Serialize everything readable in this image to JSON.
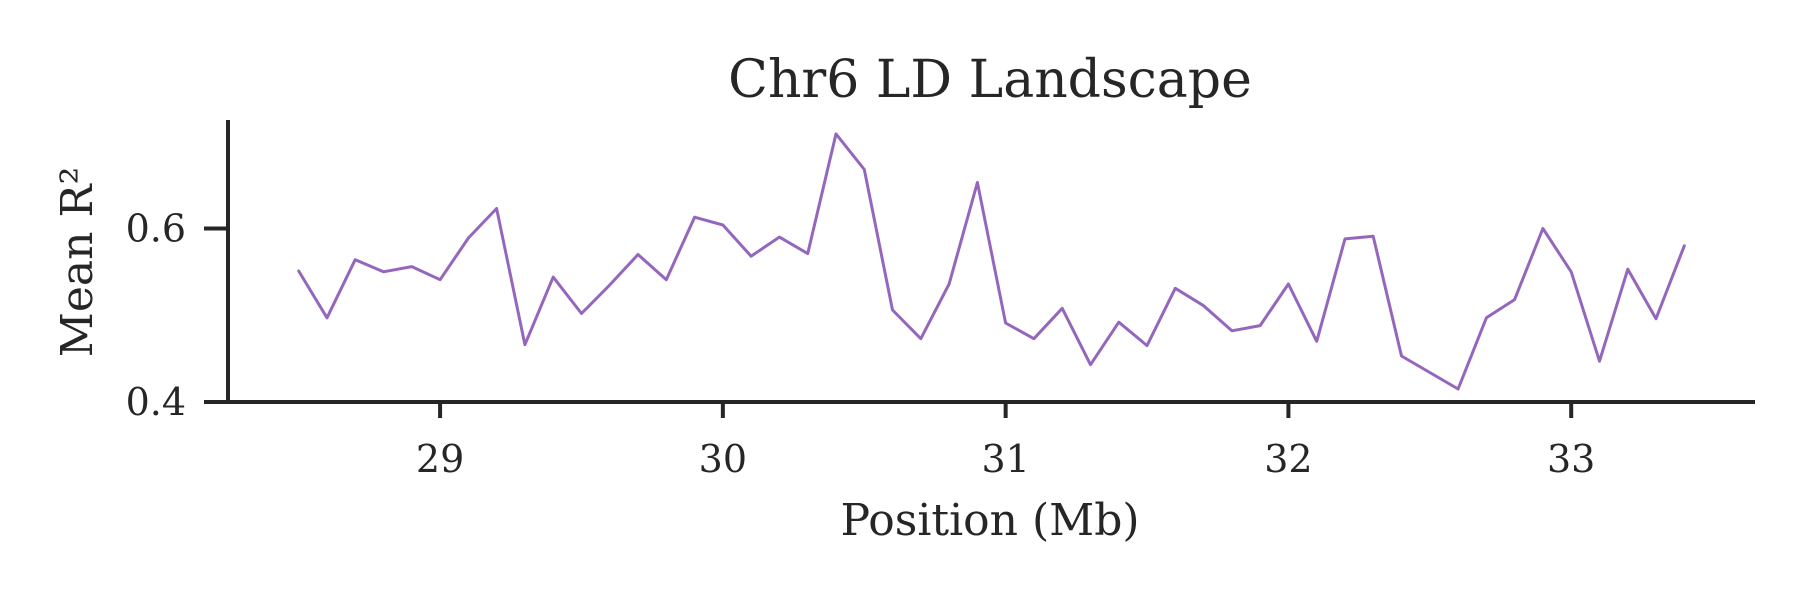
{
  "chart_data": {
    "type": "line",
    "title": "Chr6 LD Landscape",
    "xlabel": "Position (Mb)",
    "ylabel": "Mean R²",
    "xlim": [
      28.25,
      33.65
    ],
    "ylim": [
      0.4,
      0.725
    ],
    "xticks": [
      29,
      30,
      31,
      32,
      33
    ],
    "xtick_labels": [
      "29",
      "30",
      "31",
      "32",
      "33"
    ],
    "yticks": [
      0.4,
      0.6
    ],
    "ytick_labels": [
      "0.4",
      "0.6"
    ],
    "grid": false,
    "series": [
      {
        "color": "#9467bd",
        "x": [
          28.5,
          28.6,
          28.7,
          28.8,
          28.9,
          29.0,
          29.1,
          29.2,
          29.3,
          29.4,
          29.5,
          29.6,
          29.7,
          29.8,
          29.9,
          30.0,
          30.1,
          30.2,
          30.3,
          30.4,
          30.5,
          30.6,
          30.7,
          30.8,
          30.9,
          31.0,
          31.1,
          31.2,
          31.3,
          31.4,
          31.5,
          31.6,
          31.7,
          31.8,
          31.9,
          32.0,
          32.1,
          32.2,
          32.3,
          32.4,
          32.5,
          32.6,
          32.7,
          32.8,
          32.9,
          33.0,
          33.1,
          33.2,
          33.3,
          33.4
        ],
        "y": [
          0.551,
          0.497,
          0.564,
          0.55,
          0.556,
          0.541,
          0.589,
          0.623,
          0.466,
          0.544,
          0.502,
          0.535,
          0.57,
          0.541,
          0.613,
          0.604,
          0.568,
          0.59,
          0.571,
          0.709,
          0.668,
          0.506,
          0.473,
          0.536,
          0.653,
          0.491,
          0.473,
          0.508,
          0.443,
          0.492,
          0.465,
          0.531,
          0.511,
          0.482,
          0.488,
          0.536,
          0.47,
          0.588,
          0.591,
          0.453,
          0.434,
          0.415,
          0.497,
          0.518,
          0.6,
          0.55,
          0.447,
          0.553,
          0.496,
          0.58
        ]
      }
    ]
  }
}
